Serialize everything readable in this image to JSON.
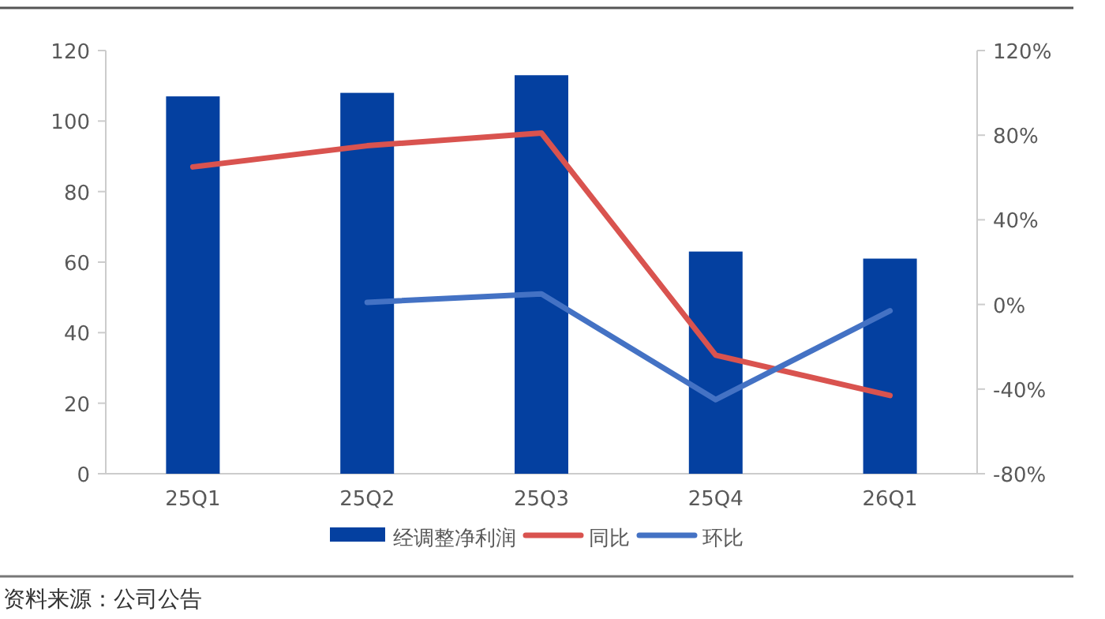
{
  "chart_data": {
    "type": "bar",
    "categories": [
      "25Q1",
      "25Q2",
      "25Q3",
      "25Q4",
      "26Q1"
    ],
    "series": [
      {
        "name": "经调整净利润",
        "color": "#0440a0",
        "values": [
          107,
          108,
          113,
          63,
          61
        ]
      },
      {
        "name": "同比",
        "type": "line",
        "axis": "y2",
        "color": "#d9534f",
        "values": [
          65,
          75,
          81,
          -24,
          -43
        ]
      },
      {
        "name": "环比",
        "type": "line",
        "axis": "y2",
        "color": "#4472c4",
        "values": [
          null,
          1,
          5,
          -45,
          -3
        ]
      }
    ],
    "ylim": [
      0,
      120
    ],
    "yticks": [
      0,
      20,
      40,
      60,
      80,
      100,
      120
    ],
    "y2lim": [
      -80,
      120
    ],
    "y2ticks": [
      {
        "value": -80,
        "label": "-80%"
      },
      {
        "value": -40,
        "label": "-40%"
      },
      {
        "value": 0,
        "label": "0%"
      },
      {
        "value": 40,
        "label": "40%"
      },
      {
        "value": 80,
        "label": "80%"
      },
      {
        "value": 120,
        "label": "120%"
      }
    ],
    "legend": "bottom",
    "grid": false,
    "annotations": [
      "资料来源：公司公告"
    ]
  }
}
